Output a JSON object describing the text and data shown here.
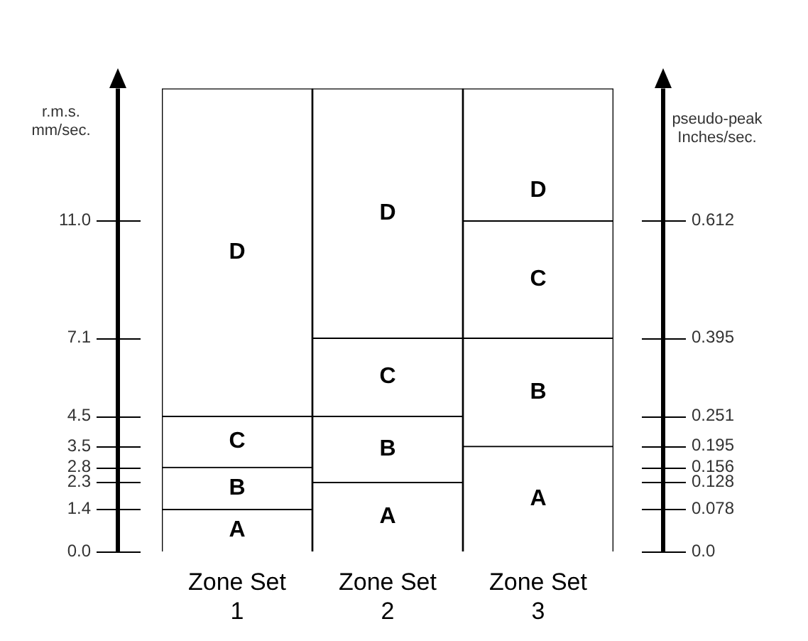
{
  "chart_data": {
    "type": "bar",
    "stacked": true,
    "categories": [
      "Zone Set 1",
      "Zone Set 2",
      "Zone Set 3"
    ],
    "series": [
      {
        "name": "A",
        "color": "#ffffff",
        "values": [
          1.4,
          2.3,
          3.5
        ]
      },
      {
        "name": "B",
        "color": "#ffffff",
        "values": [
          1.4,
          2.2,
          3.6
        ]
      },
      {
        "name": "C",
        "color": "#ffffff",
        "values": [
          1.7,
          2.6,
          3.9
        ]
      },
      {
        "name": "D",
        "color": "#ffffff",
        "values": [
          10.9,
          8.3,
          4.4
        ]
      }
    ],
    "ylabel": "r.m.s. mm/sec.",
    "y2label": "pseudo-peak Inches/sec.",
    "ylim": [
      0,
      15.4
    ],
    "yticks": [
      {
        "value": 0,
        "label": "0.0"
      },
      1.4,
      2.3,
      2.8,
      3.5,
      4.5,
      7.1,
      {
        "value": 11,
        "label": "11.0"
      }
    ],
    "y2lim": [
      0,
      0.857
    ],
    "y2ticks": [
      {
        "value": 0,
        "label": "0.0"
      },
      0.078,
      0.128,
      0.156,
      0.195,
      0.251,
      0.395,
      0.612
    ],
    "grid": false,
    "legend": false
  }
}
